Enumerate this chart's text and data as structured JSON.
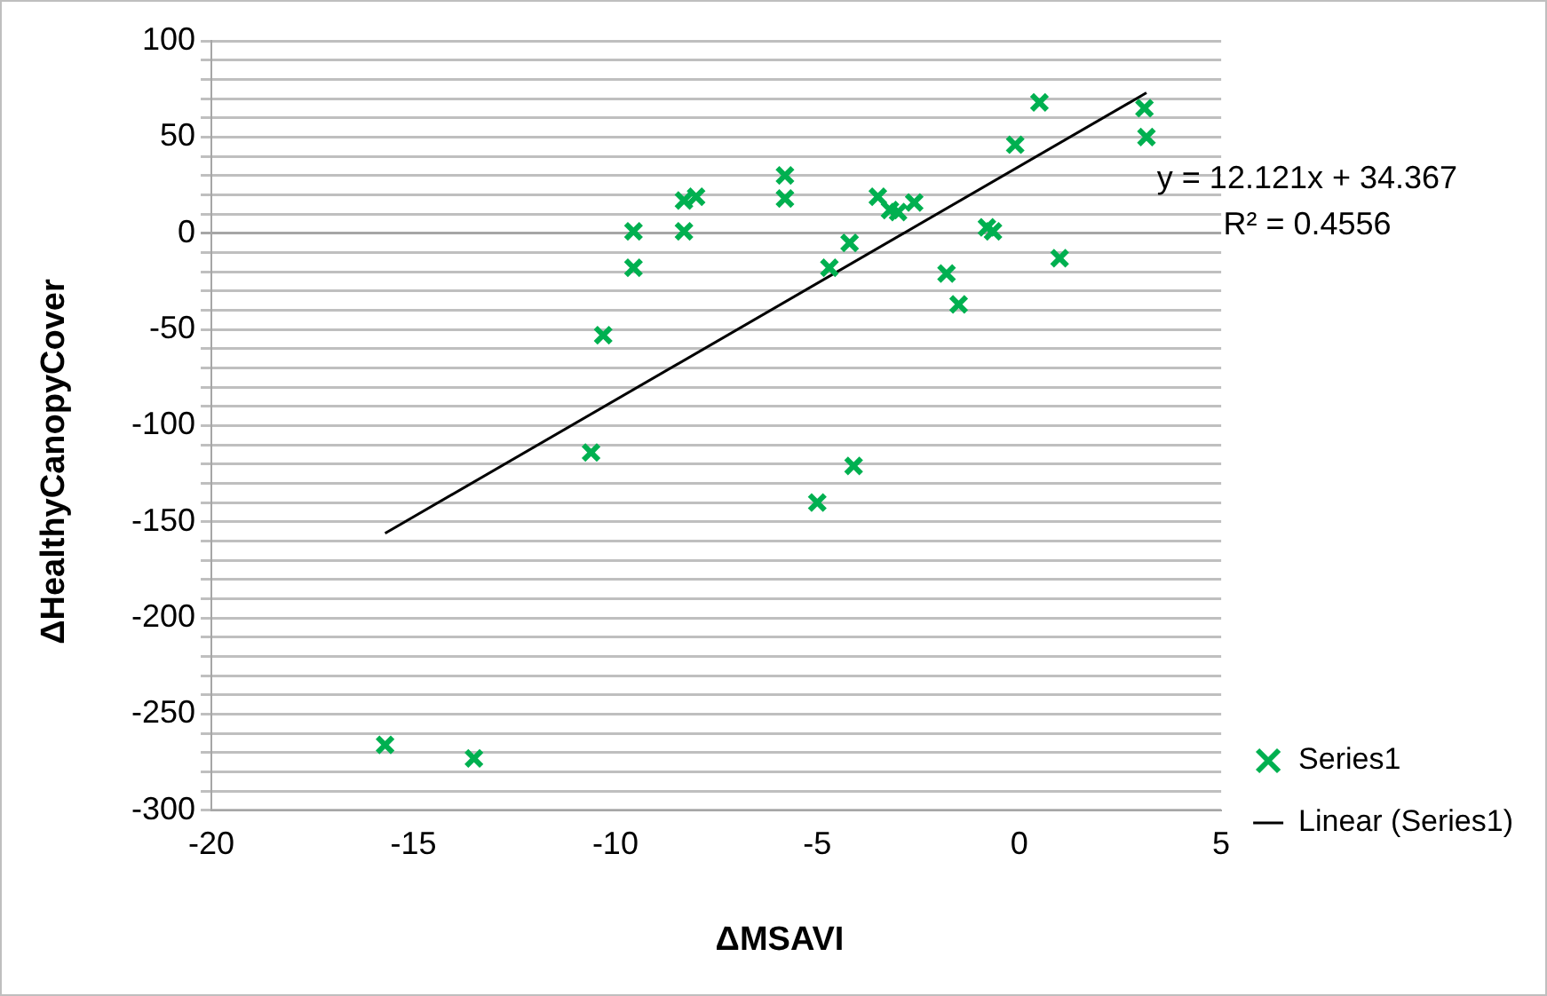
{
  "chart_data": {
    "type": "scatter",
    "xlabel": "ΔMSAVI",
    "ylabel": "ΔHealthyCanopyCover",
    "annotations": [
      "y = 12.121x + 34.367",
      "R² = 0.4556"
    ],
    "xlim": [
      -20,
      5
    ],
    "xticks": [
      -20,
      -15,
      -10,
      -5,
      0,
      5
    ],
    "ylim": [
      -300,
      100
    ],
    "yticks": [
      -300,
      {
        "value": -290,
        "label": null
      },
      {
        "value": -280,
        "label": null
      },
      {
        "value": -270,
        "label": null
      },
      {
        "value": -260,
        "label": null
      },
      -250,
      {
        "value": -240,
        "label": null
      },
      {
        "value": -230,
        "label": null
      },
      {
        "value": -220,
        "label": null
      },
      {
        "value": -210,
        "label": null
      },
      -200,
      {
        "value": -190,
        "label": null
      },
      {
        "value": -180,
        "label": null
      },
      {
        "value": -170,
        "label": null
      },
      {
        "value": -160,
        "label": null
      },
      -150,
      {
        "value": -140,
        "label": null
      },
      {
        "value": -130,
        "label": null
      },
      {
        "value": -120,
        "label": null
      },
      {
        "value": -110,
        "label": null
      },
      -100,
      {
        "value": -90,
        "label": null
      },
      {
        "value": -80,
        "label": null
      },
      {
        "value": -70,
        "label": null
      },
      {
        "value": -60,
        "label": null
      },
      -50,
      {
        "value": -40,
        "label": null
      },
      {
        "value": -30,
        "label": null
      },
      {
        "value": -20,
        "label": null
      },
      {
        "value": -10,
        "label": null
      },
      0,
      {
        "value": 10,
        "label": null
      },
      {
        "value": 20,
        "label": null
      },
      {
        "value": 30,
        "label": null
      },
      {
        "value": 40,
        "label": null
      },
      50,
      {
        "value": 60,
        "label": null
      },
      {
        "value": 70,
        "label": null
      },
      {
        "value": 80,
        "label": null
      },
      {
        "value": 90,
        "label": null
      },
      100
    ],
    "grid": "y",
    "legend": "right",
    "marker": "cross",
    "series": [
      {
        "name": "Series1",
        "color": "#00b050",
        "x": [
          -9.55,
          -9.55,
          -10.3,
          -8.3,
          -8.0,
          -8.3,
          -5.8,
          -5.8,
          -4.2,
          -4.7,
          -3.5,
          -3.2,
          -3.0,
          -2.6,
          -1.8,
          -1.5,
          -0.8,
          -0.65,
          -0.1,
          0.5,
          1.0,
          3.1,
          3.15,
          -10.6,
          -5.0,
          -4.1,
          -15.7,
          -13.5
        ],
        "values": [
          1,
          -18,
          -53,
          17,
          19,
          1,
          30,
          18,
          -5,
          -18,
          19,
          12,
          11,
          16,
          -21,
          -37,
          3,
          1,
          46,
          68,
          -13,
          65,
          50,
          -114,
          -140,
          -121,
          -266,
          -273
        ]
      },
      {
        "name": "Linear (Series1)",
        "type": "line",
        "marker": "none",
        "color": "#000000",
        "x": [
          -15.7,
          3.15
        ],
        "values": [
          -156,
          73
        ]
      }
    ]
  }
}
